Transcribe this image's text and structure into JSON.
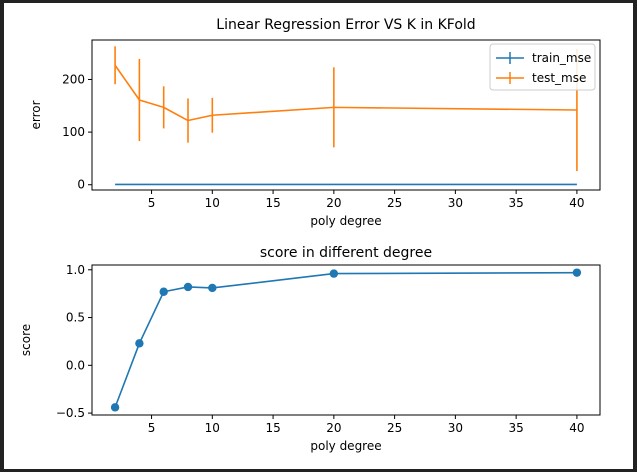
{
  "chart_data": [
    {
      "type": "line",
      "title": "Linear Regression Error VS K in KFold",
      "xlabel": "poly degree",
      "ylabel": "error",
      "xlim": [
        0.1,
        41.9
      ],
      "ylim": [
        -10,
        275
      ],
      "xticks": [
        5,
        10,
        15,
        20,
        25,
        30,
        35,
        40
      ],
      "yticks": [
        0,
        100,
        200
      ],
      "legend_position": "top-right",
      "x": [
        2,
        4,
        6,
        8,
        10,
        20,
        40
      ],
      "series": [
        {
          "name": "train_mse",
          "color": "#1f77b4",
          "values": [
            0.5,
            0.5,
            0.5,
            0.5,
            0.5,
            0.5,
            0.5
          ],
          "errors": [
            0,
            0,
            0,
            0,
            0,
            0,
            0
          ]
        },
        {
          "name": "test_mse",
          "color": "#ff7f0e",
          "values": [
            227,
            161,
            147,
            122,
            132,
            147,
            142
          ],
          "errors": [
            36,
            78,
            40,
            42,
            33,
            76,
            116
          ]
        }
      ]
    },
    {
      "type": "line",
      "title": "score in different degree",
      "xlabel": "poly degree",
      "ylabel": "score",
      "xlim": [
        0.1,
        41.9
      ],
      "ylim": [
        -0.52,
        1.05
      ],
      "xticks": [
        5,
        10,
        15,
        20,
        25,
        30,
        35,
        40
      ],
      "yticks": [
        -0.5,
        0.0,
        0.5,
        1.0
      ],
      "ytick_labels": [
        "−0.5",
        "0.0",
        "0.5",
        "1.0"
      ],
      "marker": "circle",
      "x": [
        2,
        4,
        6,
        8,
        10,
        20,
        40
      ],
      "series": [
        {
          "name": "score",
          "color": "#1f77b4",
          "values": [
            -0.44,
            0.23,
            0.77,
            0.82,
            0.81,
            0.96,
            0.97
          ]
        }
      ]
    }
  ]
}
